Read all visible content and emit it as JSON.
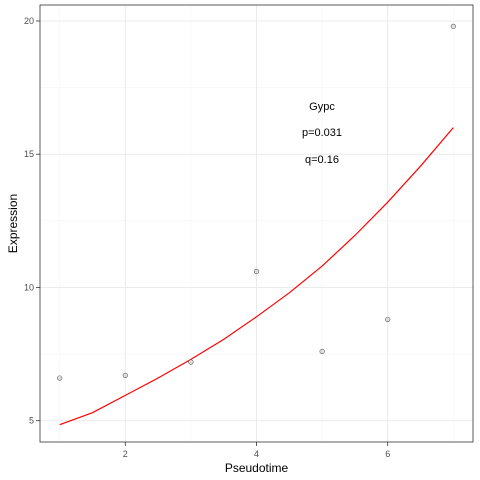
{
  "chart_data": {
    "type": "scatter",
    "xlabel": "Pseudotime",
    "ylabel": "Expression",
    "xlim": [
      0.7,
      7.3
    ],
    "ylim": [
      4.2,
      20.6
    ],
    "x_ticks": [
      2,
      4,
      6
    ],
    "x_minor_ticks": [
      1,
      3,
      5,
      7
    ],
    "y_ticks": [
      5,
      10,
      15,
      20
    ],
    "y_minor_ticks": [
      7.5,
      12.5,
      17.5
    ],
    "grid": true,
    "points": [
      {
        "x": 1,
        "y": 6.6
      },
      {
        "x": 2,
        "y": 6.7
      },
      {
        "x": 3,
        "y": 7.2
      },
      {
        "x": 4,
        "y": 10.6
      },
      {
        "x": 5,
        "y": 7.6
      },
      {
        "x": 6,
        "y": 8.8
      },
      {
        "x": 7,
        "y": 19.8
      }
    ],
    "fit_line": {
      "color": "#ff0000",
      "x": [
        1,
        1.5,
        2,
        2.5,
        3,
        3.5,
        4,
        4.5,
        5,
        5.5,
        6,
        6.5,
        7
      ],
      "y": [
        4.85,
        5.3,
        5.95,
        6.6,
        7.3,
        8.05,
        8.9,
        9.8,
        10.8,
        11.95,
        13.2,
        14.55,
        16.0
      ]
    },
    "annotations": [
      "Gypc",
      "p=0.031",
      "q=0.16"
    ],
    "colors": {
      "point_fill": "#cccccc",
      "point_stroke": "#555555",
      "fit_line": "#ff0000",
      "grid_major": "#ebebeb",
      "grid_minor": "#f5f5f5",
      "panel_border": "#333333"
    }
  }
}
